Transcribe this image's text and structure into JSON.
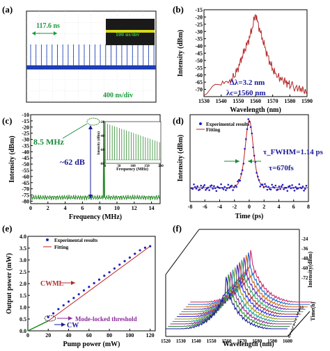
{
  "panels": {
    "a": {
      "label": "(a)",
      "period": "117.6 ns",
      "zoom": "100 us/div",
      "scale": "400 ns/div"
    },
    "b": {
      "label": "(b)",
      "annot1": "Δλ=3.2 nm",
      "annot2": "λc=1560 nm"
    },
    "c": {
      "label": "(c)",
      "annot_freq": "8.5 MHz",
      "annot_snr": "~62 dB",
      "inset_ylabel": "Intensity (dBm)",
      "inset_xlabel": "Frequency (MHz)"
    },
    "d": {
      "label": "(d)",
      "annot_fwhm": "τ_FWHM=1.14 ps",
      "annot_tau": "τ=670fs"
    },
    "e": {
      "label": "(e)",
      "annot_cwml": "CWML",
      "annot_cw": "CW",
      "annot_threshold": "Mode-locked threshold"
    },
    "f": {
      "label": "(f)"
    }
  },
  "chart_data": [
    {
      "id": "a",
      "type": "line",
      "title": "",
      "xlabel": "",
      "ylabel": "",
      "note": "oscilloscope pulse train",
      "color": "#1e3fb4"
    },
    {
      "id": "b",
      "type": "line",
      "xlabel": "Wavelength (nm)",
      "ylabel": "Intensity (dBm)",
      "xlim": [
        1530,
        1590
      ],
      "ylim": [
        -75,
        -15
      ],
      "xticks": [
        1530,
        1540,
        1550,
        1560,
        1570,
        1580,
        1590
      ],
      "yticks": [
        -70,
        -65,
        -60,
        -55,
        -50,
        -45,
        -40,
        -35,
        -30,
        -25,
        -20,
        -15
      ],
      "x": [
        1530,
        1540,
        1545,
        1548,
        1550,
        1552,
        1554,
        1556,
        1558,
        1560,
        1562,
        1564,
        1566,
        1568,
        1570,
        1572,
        1575,
        1578,
        1580,
        1584,
        1587,
        1590
      ],
      "y": [
        -72,
        -68,
        -65,
        -60,
        -55,
        -48,
        -42,
        -36,
        -28,
        -18,
        -27,
        -35,
        -43,
        -50,
        -56,
        -60,
        -63,
        -65,
        -67,
        -69,
        -70,
        -72
      ],
      "color": "#b52a2a"
    },
    {
      "id": "c",
      "type": "line",
      "xlabel": "Frequency (MHz)",
      "ylabel": "Intensity (dBm)",
      "xlim": [
        0,
        15
      ],
      "ylim": [
        -82,
        -10
      ],
      "xticks": [
        0,
        2,
        4,
        6,
        8,
        10,
        12,
        14
      ],
      "yticks": [
        -80,
        -75,
        -70,
        -65,
        -60,
        -55,
        -50,
        -45,
        -40,
        -35,
        -30,
        -25,
        -20,
        -15,
        -10
      ],
      "peak_x": 8.5,
      "peak_y": -15,
      "noise_floor": -77,
      "color": "#2a8a2a",
      "inset": {
        "xlim": [
          0,
          200
        ],
        "xticks": [
          0,
          50,
          100,
          150,
          200
        ],
        "ylim": [
          -80,
          -20
        ],
        "yticks": [
          -80,
          -60,
          -40,
          -20
        ],
        "spacing": 8.5
      }
    },
    {
      "id": "d",
      "type": "scatter",
      "xlabel": "Time (ps)",
      "ylabel": "Intensity (dBm)",
      "xlim": [
        -8,
        8
      ],
      "xticks": [
        -8,
        -6,
        -4,
        -2,
        0,
        2,
        4,
        6,
        8
      ],
      "series": [
        {
          "name": "Experimental results",
          "color": "#2020c0"
        },
        {
          "name": "Fitting",
          "color": "#c02020"
        }
      ],
      "fwhm": 1.14
    },
    {
      "id": "e",
      "type": "line",
      "xlabel": "Pump power (mW)",
      "ylabel": "Output power (mW)",
      "xlim": [
        0,
        125
      ],
      "ylim": [
        0,
        4.0
      ],
      "xticks": [
        0,
        20,
        40,
        60,
        80,
        100,
        120
      ],
      "yticks": [
        0.0,
        0.5,
        1.0,
        1.5,
        2.0,
        2.5,
        3.0,
        3.5,
        4.0
      ],
      "x": [
        20,
        25,
        30,
        35,
        40,
        45,
        50,
        55,
        60,
        65,
        70,
        75,
        80,
        85,
        90,
        95,
        100,
        105,
        110,
        115,
        120
      ],
      "y": [
        0.58,
        0.74,
        0.92,
        1.08,
        1.24,
        1.39,
        1.55,
        1.71,
        1.86,
        2.02,
        2.17,
        2.33,
        2.48,
        2.64,
        2.8,
        2.95,
        3.1,
        3.26,
        3.41,
        3.52,
        3.58
      ],
      "series": [
        {
          "name": "Experimental results",
          "color": "#2020c0"
        },
        {
          "name": "Fitting",
          "color": "#c02020"
        }
      ],
      "threshold_x": 20,
      "cw_color": "#1a8a1a"
    },
    {
      "id": "f",
      "type": "line",
      "xlabel": "Wavelength (nm)",
      "ylabel": "Intensity(dBm)",
      "zlabel": "Time(h)",
      "xticks": [
        1520,
        1530,
        1540,
        1550,
        1560,
        1570,
        1580,
        1590,
        1600
      ],
      "yticks": [
        -24,
        -36,
        -48,
        -60,
        -72
      ],
      "zticks": [
        0,
        1,
        2,
        3,
        4,
        5,
        6,
        7,
        8,
        9,
        10
      ],
      "colors": [
        "#1a1a9a",
        "#2a8a2a",
        "#8a2a8a",
        "#1a9a9a",
        "#9a9a1a",
        "#2a2aee",
        "#aa2a2a",
        "#2aaa6a",
        "#6a2aaa",
        "#cc6a1a",
        "#1a6acc",
        "#cc2a6a"
      ]
    }
  ]
}
